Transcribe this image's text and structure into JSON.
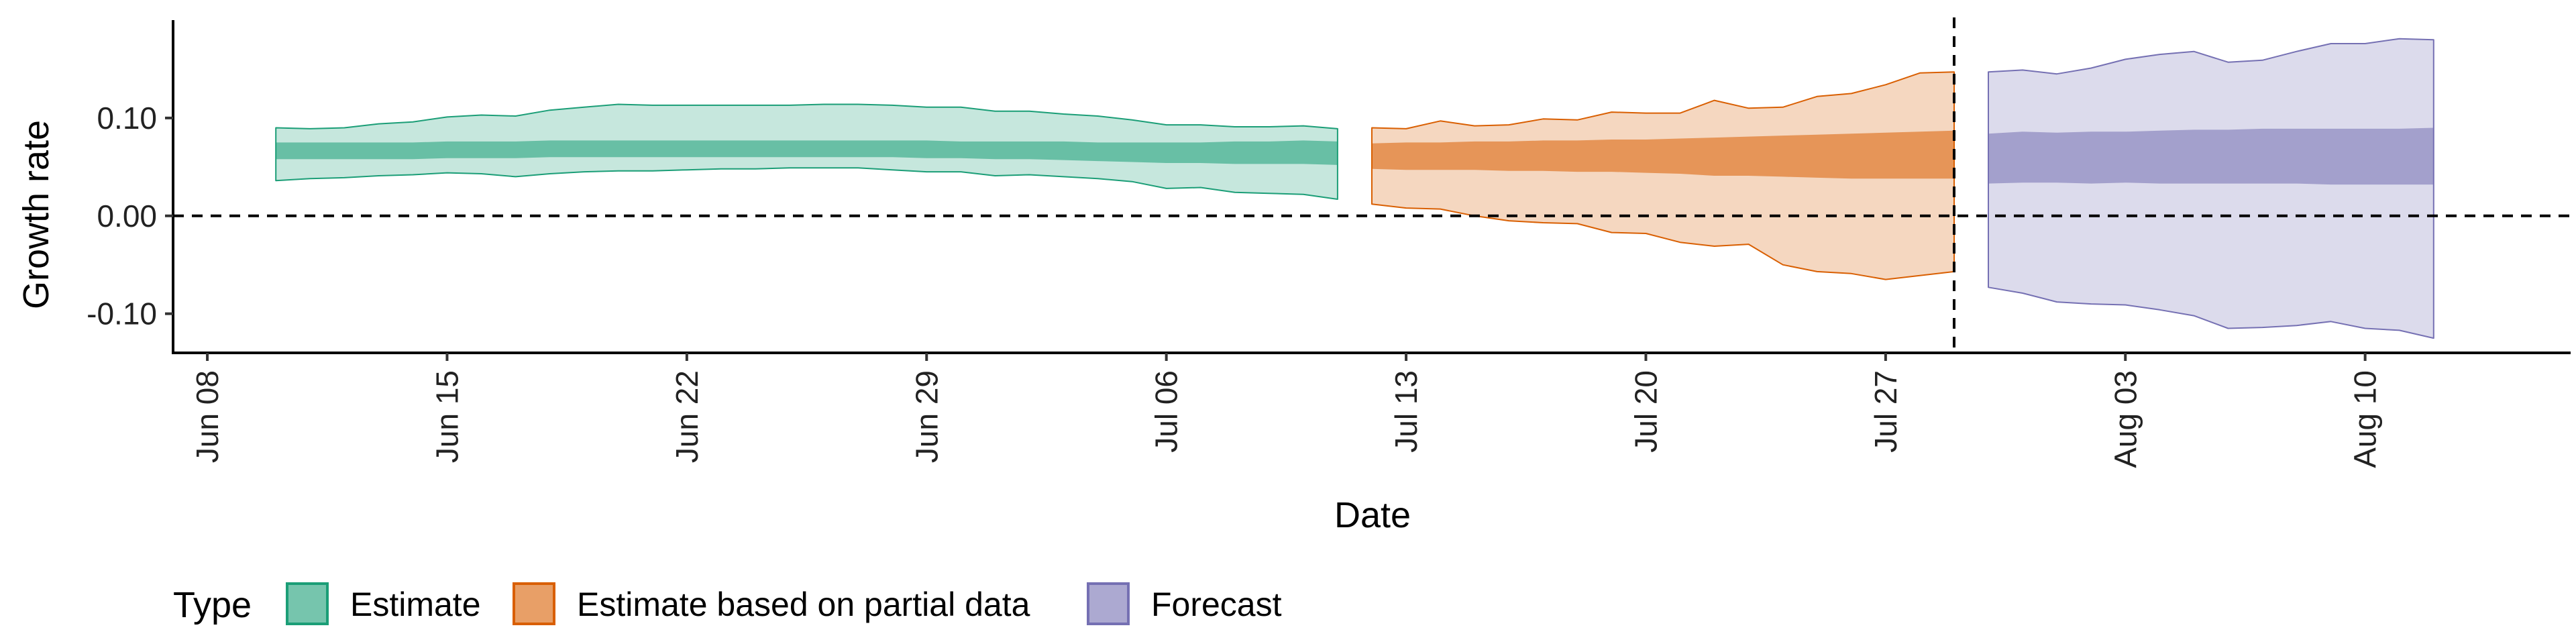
{
  "chart_data": {
    "type": "area",
    "xlabel": "Date",
    "ylabel": "Growth rate",
    "x_axis_type": "date",
    "xlim": [
      "2020-06-07",
      "2020-08-16"
    ],
    "ylim": [
      -0.14,
      0.2
    ],
    "x_ticks": [
      "2020-06-08",
      "2020-06-15",
      "2020-06-22",
      "2020-06-29",
      "2020-07-06",
      "2020-07-13",
      "2020-07-20",
      "2020-07-27",
      "2020-08-03",
      "2020-08-10"
    ],
    "x_tick_labels": [
      "Jun 08",
      "Jun 15",
      "Jun 22",
      "Jun 29",
      "Jul 06",
      "Jul 13",
      "Jul 20",
      "Jul 27",
      "Aug 03",
      "Aug 10"
    ],
    "y_ticks": [
      0.1,
      0.0,
      -0.1
    ],
    "y_tick_labels": [
      "0.10",
      "0.00",
      "-0.10"
    ],
    "hline": {
      "y": 0.0,
      "style": "dashed"
    },
    "vline": {
      "x": "2020-07-29",
      "style": "dashed"
    },
    "grid": false,
    "legend": {
      "title": "Type",
      "position": "bottom",
      "entries": [
        "Estimate",
        "Estimate based on partial data",
        "Forecast"
      ]
    },
    "series": [
      {
        "name": "Estimate",
        "color": "#1b9e77",
        "x": [
          "2020-06-10",
          "2020-06-11",
          "2020-06-12",
          "2020-06-13",
          "2020-06-14",
          "2020-06-15",
          "2020-06-16",
          "2020-06-17",
          "2020-06-18",
          "2020-06-19",
          "2020-06-20",
          "2020-06-21",
          "2020-06-22",
          "2020-06-23",
          "2020-06-24",
          "2020-06-25",
          "2020-06-26",
          "2020-06-27",
          "2020-06-28",
          "2020-06-29",
          "2020-06-30",
          "2020-07-01",
          "2020-07-02",
          "2020-07-03",
          "2020-07-04",
          "2020-07-05",
          "2020-07-06",
          "2020-07-07",
          "2020-07-08",
          "2020-07-09",
          "2020-07-10",
          "2020-07-11"
        ],
        "lower90": [
          0.036,
          0.038,
          0.039,
          0.041,
          0.042,
          0.044,
          0.043,
          0.04,
          0.043,
          0.045,
          0.046,
          0.046,
          0.047,
          0.048,
          0.048,
          0.049,
          0.049,
          0.049,
          0.047,
          0.045,
          0.045,
          0.041,
          0.042,
          0.04,
          0.038,
          0.035,
          0.028,
          0.029,
          0.024,
          0.023,
          0.022,
          0.017
        ],
        "upper90": [
          0.09,
          0.089,
          0.09,
          0.094,
          0.096,
          0.101,
          0.103,
          0.102,
          0.108,
          0.111,
          0.114,
          0.113,
          0.113,
          0.113,
          0.113,
          0.113,
          0.114,
          0.114,
          0.113,
          0.111,
          0.111,
          0.107,
          0.107,
          0.104,
          0.102,
          0.098,
          0.093,
          0.093,
          0.091,
          0.091,
          0.092,
          0.089
        ],
        "lower50": [
          0.058,
          0.058,
          0.058,
          0.058,
          0.058,
          0.059,
          0.059,
          0.059,
          0.06,
          0.06,
          0.06,
          0.06,
          0.06,
          0.06,
          0.06,
          0.06,
          0.06,
          0.06,
          0.06,
          0.059,
          0.059,
          0.058,
          0.058,
          0.057,
          0.056,
          0.055,
          0.054,
          0.054,
          0.053,
          0.053,
          0.053,
          0.052
        ],
        "upper50": [
          0.075,
          0.075,
          0.075,
          0.075,
          0.075,
          0.076,
          0.076,
          0.076,
          0.077,
          0.077,
          0.077,
          0.077,
          0.077,
          0.077,
          0.077,
          0.077,
          0.077,
          0.077,
          0.077,
          0.077,
          0.076,
          0.076,
          0.076,
          0.076,
          0.075,
          0.075,
          0.075,
          0.075,
          0.076,
          0.076,
          0.077,
          0.076
        ]
      },
      {
        "name": "Estimate based on partial data",
        "color": "#d95f02",
        "x": [
          "2020-07-12",
          "2020-07-13",
          "2020-07-14",
          "2020-07-15",
          "2020-07-16",
          "2020-07-17",
          "2020-07-18",
          "2020-07-19",
          "2020-07-20",
          "2020-07-21",
          "2020-07-22",
          "2020-07-23",
          "2020-07-24",
          "2020-07-25",
          "2020-07-26",
          "2020-07-27",
          "2020-07-28",
          "2020-07-29"
        ],
        "lower90": [
          0.012,
          0.008,
          0.007,
          0.0,
          -0.005,
          -0.007,
          -0.008,
          -0.017,
          -0.018,
          -0.027,
          -0.031,
          -0.029,
          -0.05,
          -0.057,
          -0.059,
          -0.065,
          -0.061,
          -0.057
        ],
        "upper90": [
          0.09,
          0.089,
          0.097,
          0.092,
          0.093,
          0.099,
          0.098,
          0.106,
          0.105,
          0.105,
          0.118,
          0.11,
          0.111,
          0.122,
          0.125,
          0.134,
          0.146,
          0.147
        ],
        "lower50": [
          0.048,
          0.047,
          0.047,
          0.047,
          0.046,
          0.046,
          0.045,
          0.045,
          0.044,
          0.043,
          0.041,
          0.041,
          0.04,
          0.039,
          0.038,
          0.038,
          0.038,
          0.038
        ],
        "upper50": [
          0.074,
          0.075,
          0.075,
          0.076,
          0.076,
          0.077,
          0.077,
          0.078,
          0.078,
          0.079,
          0.08,
          0.081,
          0.082,
          0.083,
          0.084,
          0.085,
          0.086,
          0.087
        ]
      },
      {
        "name": "Forecast",
        "color": "#7570b3",
        "x": [
          "2020-07-30",
          "2020-07-31",
          "2020-08-01",
          "2020-08-02",
          "2020-08-03",
          "2020-08-04",
          "2020-08-05",
          "2020-08-06",
          "2020-08-07",
          "2020-08-08",
          "2020-08-09",
          "2020-08-10",
          "2020-08-11",
          "2020-08-12"
        ],
        "lower90": [
          -0.073,
          -0.079,
          -0.088,
          -0.09,
          -0.091,
          -0.096,
          -0.102,
          -0.115,
          -0.114,
          -0.112,
          -0.108,
          -0.115,
          -0.117,
          -0.125
        ],
        "upper90": [
          0.147,
          0.149,
          0.145,
          0.151,
          0.16,
          0.165,
          0.168,
          0.157,
          0.159,
          0.168,
          0.176,
          0.176,
          0.181,
          0.18
        ],
        "lower50": [
          0.033,
          0.034,
          0.034,
          0.033,
          0.034,
          0.033,
          0.033,
          0.033,
          0.033,
          0.033,
          0.032,
          0.032,
          0.032,
          0.032
        ],
        "upper50": [
          0.084,
          0.086,
          0.085,
          0.086,
          0.086,
          0.087,
          0.088,
          0.088,
          0.089,
          0.089,
          0.089,
          0.089,
          0.089,
          0.09
        ]
      }
    ]
  }
}
